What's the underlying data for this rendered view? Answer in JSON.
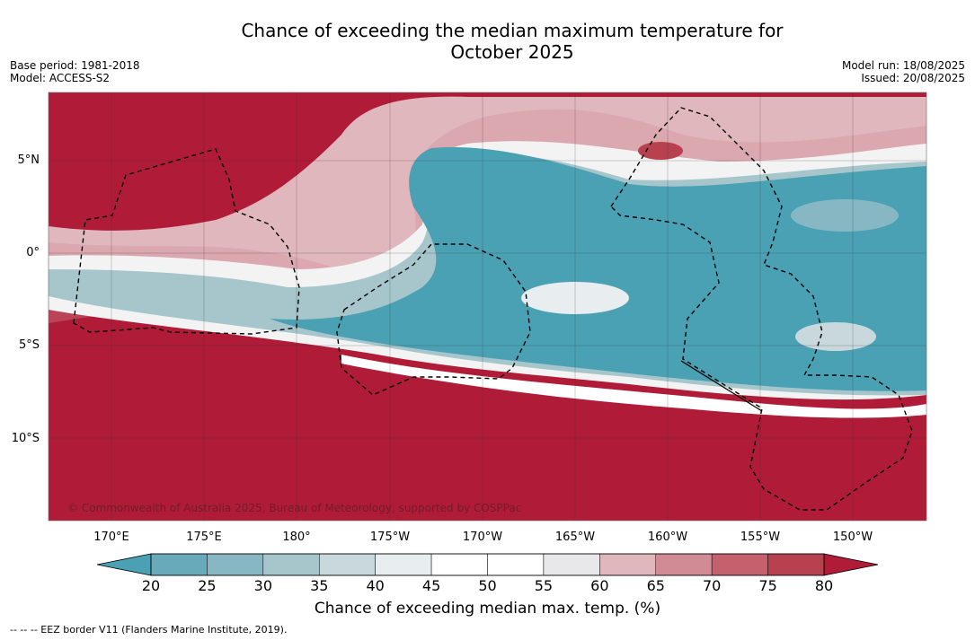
{
  "title_line1": "Chance of exceeding the median maximum temperature for",
  "title_line2": "October 2025",
  "base_period": "Base period: 1981-2018",
  "model": "Model: ACCESS-S2",
  "model_run": "Model run: 18/08/2025",
  "issued": "Issued: 20/08/2025",
  "copyright": "© Commonwealth of Australia 2025, Bureau of Meteorology, supported by COSPPac",
  "lat_labels": [
    "5°N",
    "0°",
    "5°S",
    "10°S"
  ],
  "lon_labels": [
    "170°E",
    "175°E",
    "180°",
    "175°W",
    "170°W",
    "165°W",
    "160°W",
    "155°W",
    "150°W"
  ],
  "colorbar": {
    "label": "Chance of exceeding median max. temp. (%)",
    "ticks": [
      "20",
      "25",
      "30",
      "35",
      "40",
      "45",
      "50",
      "55",
      "60",
      "65",
      "70",
      "75",
      "80"
    ],
    "colors": [
      "#4aa1b3",
      "#68aab9",
      "#86b7c2",
      "#a6c6cc",
      "#c8d8dc",
      "#e8eef0",
      "#ffffff",
      "#ffffff",
      "#e8e8ea",
      "#e0b7bd",
      "#d08b94",
      "#c5616d",
      "#b8414f",
      "#b01c38"
    ]
  },
  "eez_legend": "--  --  -- EEZ border V11 (Flanders Marine Institute, 2019)."
}
